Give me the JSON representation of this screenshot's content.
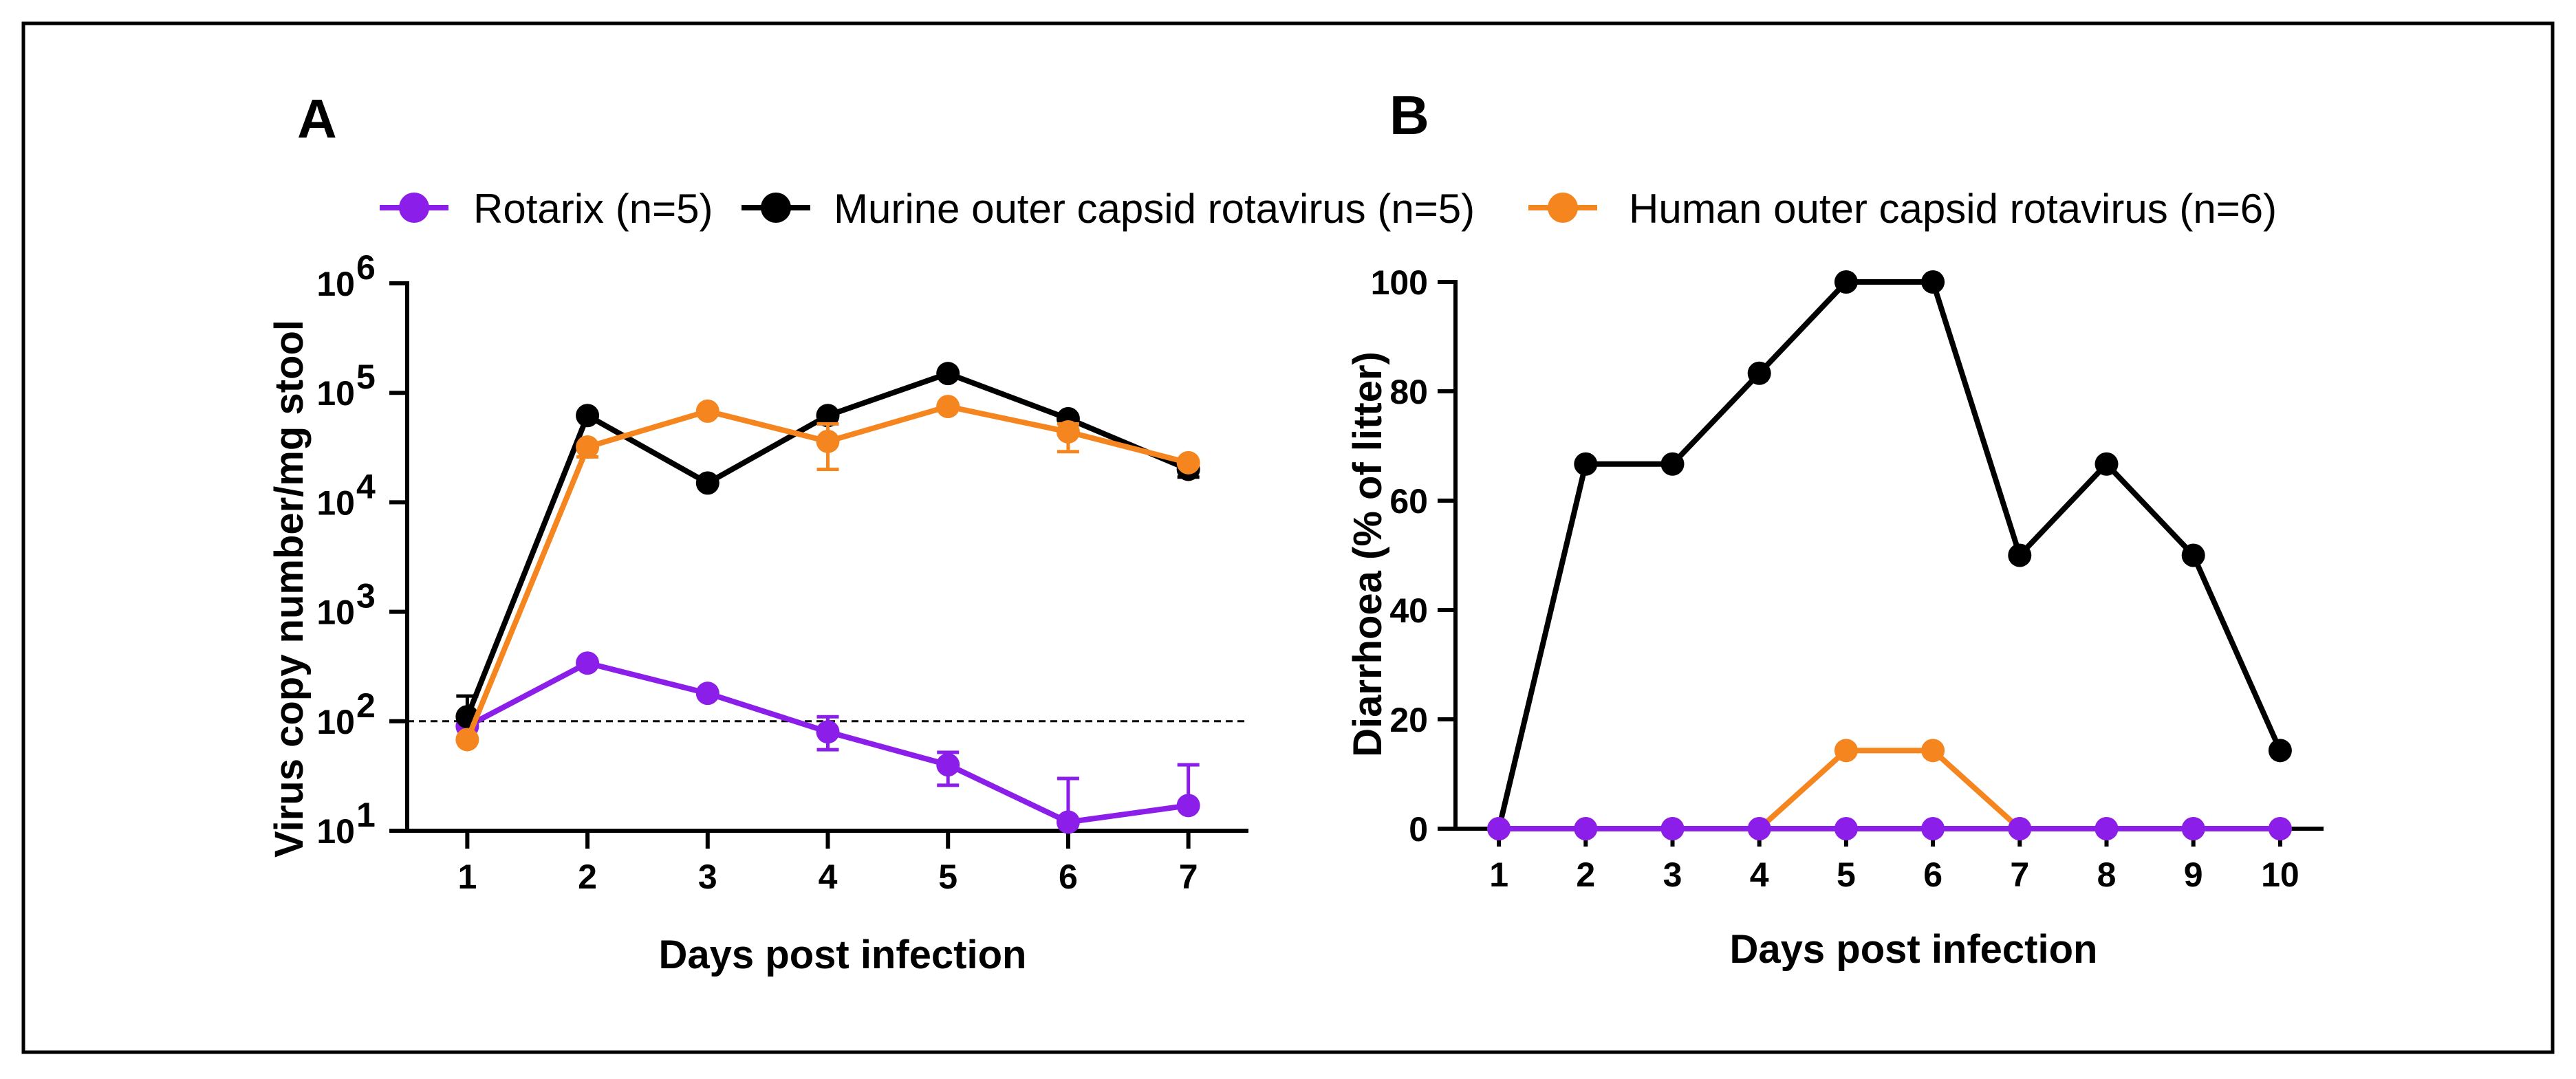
{
  "legend": [
    {
      "name": "Rotarix (n=5)",
      "color": "#8b1ee8"
    },
    {
      "name": "Murine outer capsid rotavirus (n=5)",
      "color": "#000000"
    },
    {
      "name": "Human outer capsid rotavirus (n=6)",
      "color": "#f5861f"
    }
  ],
  "chart_data": [
    {
      "panel": "A",
      "type": "line",
      "xlabel": "Days post infection",
      "ylabel": "Virus copy number/mg stool",
      "yscale": "log10",
      "ylim": [
        10,
        1000000
      ],
      "yticks": [
        {
          "value": 10,
          "base": "10",
          "exp": "1"
        },
        {
          "value": 100,
          "base": "10",
          "exp": "2"
        },
        {
          "value": 1000,
          "base": "10",
          "exp": "3"
        },
        {
          "value": 10000,
          "base": "10",
          "exp": "4"
        },
        {
          "value": 100000,
          "base": "10",
          "exp": "5"
        },
        {
          "value": 1000000,
          "base": "10",
          "exp": "6"
        }
      ],
      "x": [
        1,
        2,
        3,
        4,
        5,
        6,
        7
      ],
      "xlim": [
        0.5,
        7.5
      ],
      "detection_limit": 100,
      "series": [
        {
          "name": "Rotarix (n=5)",
          "color": "#8b1ee8",
          "values": [
            90,
            340,
            180,
            80,
            40,
            12,
            17
          ],
          "err_lo": [
            null,
            null,
            null,
            55,
            26,
            null,
            null
          ],
          "err_hi": [
            null,
            null,
            null,
            110,
            52,
            30,
            40
          ]
        },
        {
          "name": "Murine outer capsid rotavirus (n=5)",
          "color": "#000000",
          "values": [
            110,
            62000,
            15000,
            62000,
            150000,
            58000,
            20000
          ],
          "err_lo": [
            70,
            null,
            null,
            null,
            null,
            null,
            17000
          ],
          "err_hi": [
            170,
            null,
            null,
            null,
            null,
            null,
            null
          ]
        },
        {
          "name": "Human outer capsid rotavirus (n=6)",
          "color": "#f5861f",
          "values": [
            68,
            32000,
            68000,
            36000,
            75000,
            44000,
            23000
          ],
          "err_lo": [
            null,
            26000,
            null,
            20000,
            null,
            29000,
            null
          ],
          "err_hi": [
            null,
            null,
            null,
            52000,
            null,
            52000,
            null
          ]
        }
      ]
    },
    {
      "panel": "B",
      "type": "line",
      "xlabel": "Days post infection",
      "ylabel": "Diarrhoea (% of litter)",
      "ylim": [
        0,
        100
      ],
      "yticks": [
        0,
        20,
        40,
        60,
        80,
        100
      ],
      "x": [
        1,
        2,
        3,
        4,
        5,
        6,
        7,
        8,
        9,
        10
      ],
      "xlim": [
        0.5,
        10.5
      ],
      "series": [
        {
          "name": "Murine outer capsid rotavirus (n=5)",
          "color": "#000000",
          "values": [
            0,
            66.7,
            66.7,
            83.3,
            100,
            100,
            50,
            66.7,
            50,
            14.3
          ]
        },
        {
          "name": "Human outer capsid rotavirus (n=6)",
          "color": "#f5861f",
          "values": [
            0,
            0,
            0,
            0,
            14.3,
            14.3,
            0,
            0,
            0,
            0
          ]
        },
        {
          "name": "Rotarix (n=5)",
          "color": "#8b1ee8",
          "values": [
            0,
            0,
            0,
            0,
            0,
            0,
            0,
            0,
            0,
            0
          ]
        }
      ]
    }
  ]
}
